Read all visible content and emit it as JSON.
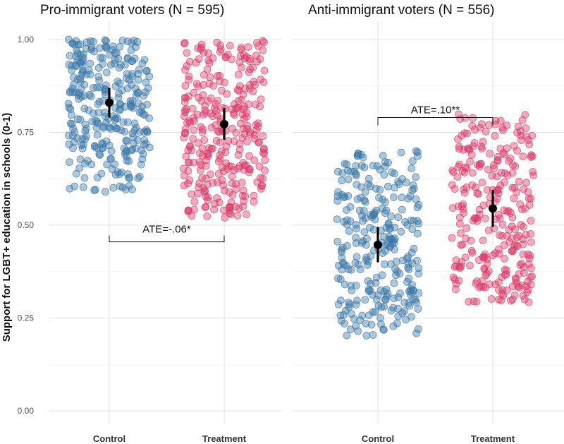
{
  "chart_data": {
    "type": "scatter",
    "ylabel": "Support for LGBT+ education in schools (0-1)",
    "ylim": [
      0,
      1
    ],
    "y_ticks": [
      "0.00",
      "0.25",
      "0.50",
      "0.75",
      "1.00"
    ],
    "y_tick_values": [
      0,
      0.25,
      0.5,
      0.75,
      1.0
    ],
    "categories": [
      "Control",
      "Treatment"
    ],
    "colors": {
      "Control": "#3a76a8",
      "Treatment": "#d93a67",
      "estimate": "#000000"
    },
    "grid": true,
    "panels": [
      {
        "title": "Pro-immigrant voters (N = 595)",
        "groups": [
          {
            "category": "Control",
            "mean": 0.83,
            "ci": [
              0.79,
              0.87
            ],
            "y_range": [
              0.59,
              1.0
            ]
          },
          {
            "category": "Treatment",
            "mean": 0.772,
            "ci": [
              0.73,
              0.815
            ],
            "y_range": [
              0.52,
              1.0
            ]
          }
        ],
        "ate": {
          "label": "ATE=-.06*",
          "bracket_y": 0.455,
          "direction": "down"
        }
      },
      {
        "title": "Anti-immigrant voters (N = 556)",
        "groups": [
          {
            "category": "Control",
            "mean": 0.447,
            "ci": [
              0.4,
              0.495
            ],
            "y_range": [
              0.2,
              0.7
            ]
          },
          {
            "category": "Treatment",
            "mean": 0.545,
            "ci": [
              0.495,
              0.595
            ],
            "y_range": [
              0.29,
              0.8
            ]
          }
        ],
        "ate": {
          "label": "ATE=.10**",
          "bracket_y": 0.79,
          "direction": "up"
        }
      }
    ]
  }
}
